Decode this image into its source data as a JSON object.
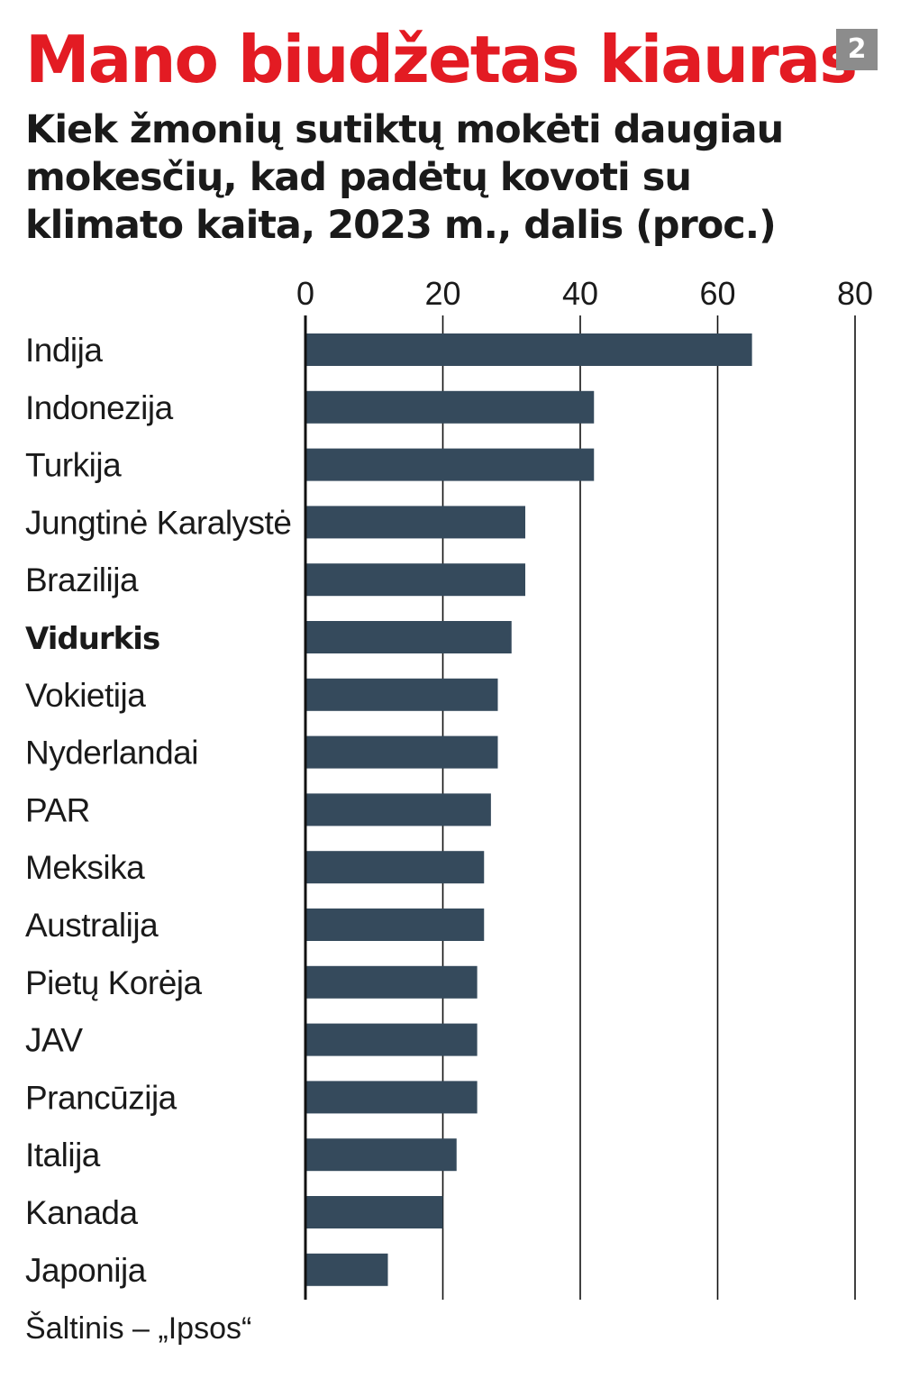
{
  "header": {
    "title": "Mano biudžetas kiauras",
    "badge": "2",
    "subtitle": "Kiek žmonių sutiktų mokėti daugiau mokesčių, kad padėtų kovoti su klimato kaita, 2023 m., dalis (proc.)"
  },
  "footer": {
    "source": "Šaltinis – „Ipsos“"
  },
  "colors": {
    "title": "#e31b23",
    "bar": "#354a5c",
    "badge": "#8c8c8c",
    "axis": "#111111"
  },
  "chart_data": {
    "type": "bar",
    "orientation": "horizontal",
    "xlim": [
      0,
      80
    ],
    "xticks": [
      0,
      20,
      40,
      60,
      80
    ],
    "grid": true,
    "highlight": "Vidurkis",
    "categories": [
      "Indija",
      "Indonezija",
      "Turkija",
      "Jungtinė Karalystė",
      "Brazilija",
      "Vidurkis",
      "Vokietija",
      "Nyderlandai",
      "PAR",
      "Meksika",
      "Australija",
      "Pietų Korėja",
      "JAV",
      "Prancūzija",
      "Italija",
      "Kanada",
      "Japonija"
    ],
    "values": [
      65,
      42,
      42,
      32,
      32,
      30,
      28,
      28,
      27,
      26,
      26,
      25,
      25,
      25,
      22,
      20,
      12
    ]
  }
}
